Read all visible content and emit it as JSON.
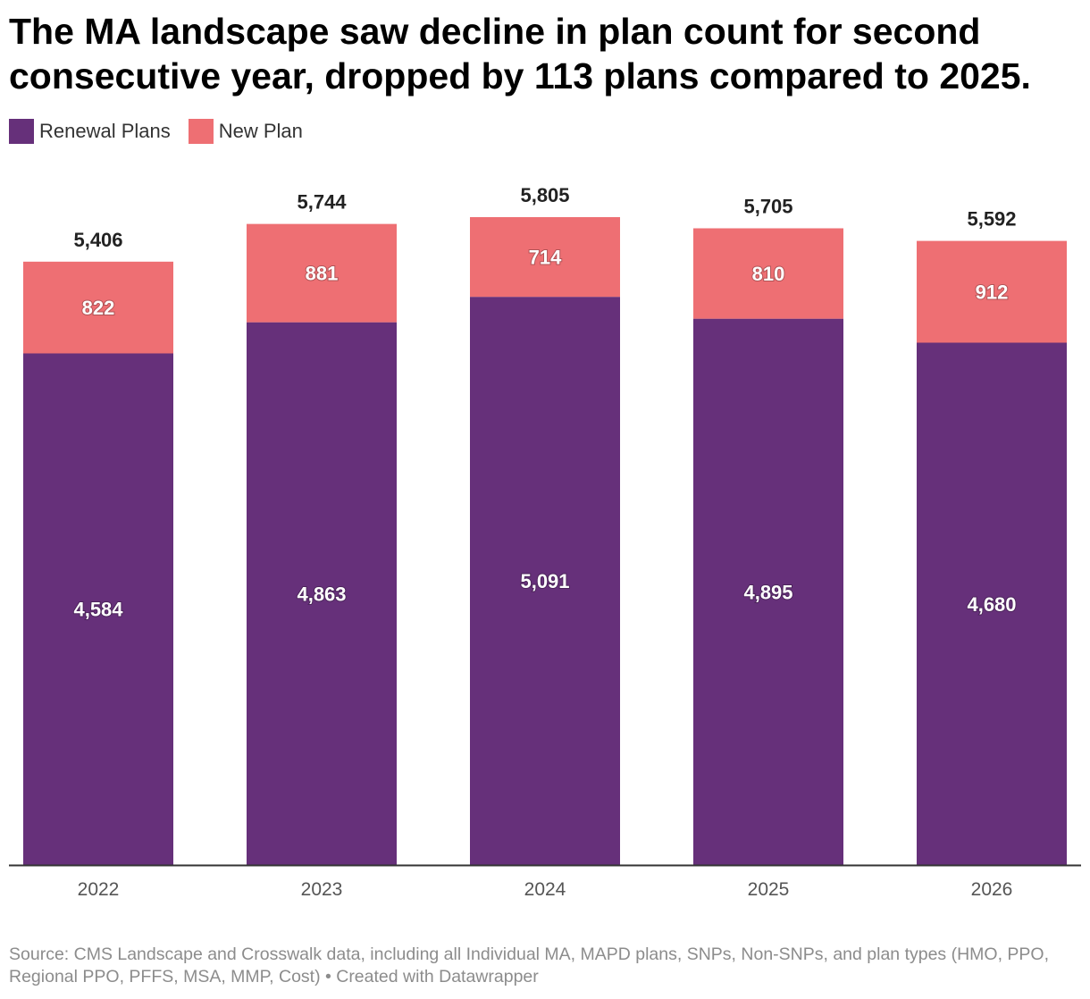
{
  "chart_data": {
    "type": "bar",
    "stacked": true,
    "title": "The MA landscape saw decline in plan count for second consecutive year, dropped by 113 plans compared to 2025.",
    "categories": [
      "2022",
      "2023",
      "2024",
      "2025",
      "2026"
    ],
    "series": [
      {
        "name": "Renewal Plans",
        "color": "#66307a",
        "values": [
          4584,
          4863,
          5091,
          4895,
          4680
        ]
      },
      {
        "name": "New Plan",
        "color": "#ee6f73",
        "values": [
          822,
          881,
          714,
          810,
          912
        ]
      }
    ],
    "totals_label_format": "comma",
    "legend_position": "top-left",
    "grid": false,
    "footer": "Source: CMS Landscape and Crosswalk data, including all Individual MA, MAPD plans, SNPs, Non-SNPs, and plan types (HMO, PPO, Regional PPO, PFFS, MSA, MMP, Cost) • Created with Datawrapper"
  }
}
